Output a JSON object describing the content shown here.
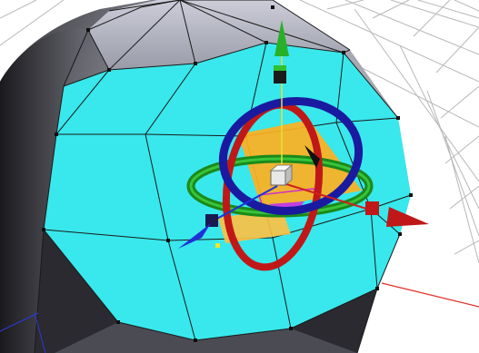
{
  "viewport": {
    "view": "perspective",
    "background_color": "#ffffff",
    "grid_color": "#b8b8b8",
    "axis_x_color": "#e0302a",
    "axis_z_color": "#2a3ad0"
  },
  "mesh": {
    "object": "sphere",
    "base_color": "#808088",
    "selected_faces_color": "#38e8ec",
    "edge_color": "#1a1a1a",
    "vertex_color": "#111111",
    "selected_vertex_color": "#f4e820",
    "selection_mode": "face"
  },
  "gizmo": {
    "type": "universal-transform",
    "center_handle_color": "#e8e8e8",
    "x_axis_color": "#d02020",
    "y_axis_color": "#28b028",
    "z_axis_color": "#2030d8",
    "x_ring_color": "#c01818",
    "y_ring_color": "#1a8a1a",
    "z_ring_color": "#1a1aa0",
    "plane_handle_color": "#ffb020",
    "scale_box_icon": "cube-handle-icon",
    "move_arrow_icon": "cone-arrow-icon"
  }
}
